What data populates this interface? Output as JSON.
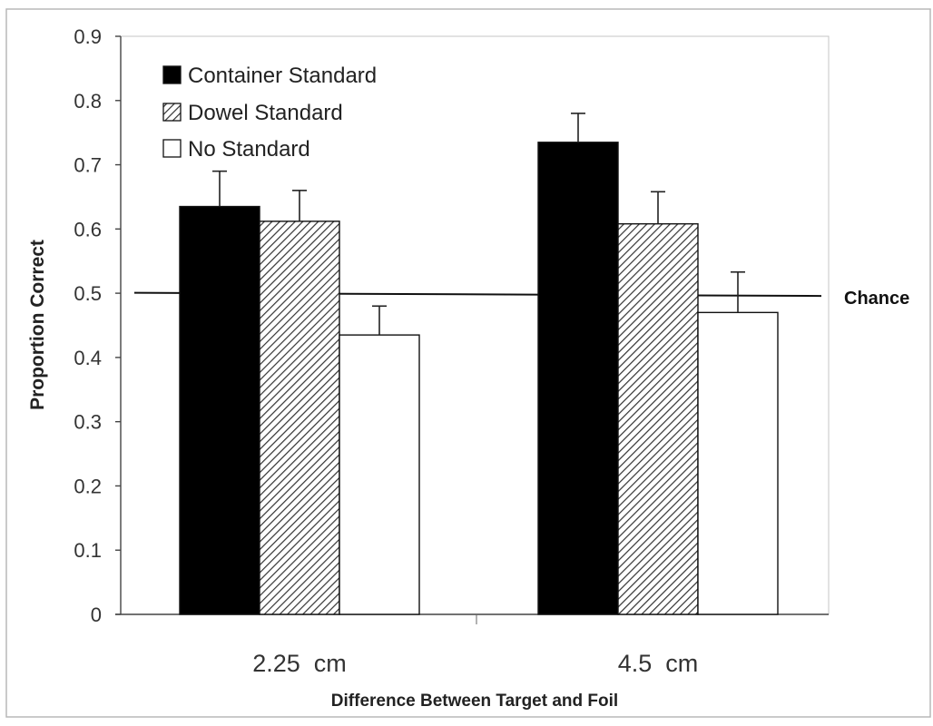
{
  "chart_data": {
    "type": "bar",
    "xlabel": "Difference Between Target and Foil",
    "ylabel": "Proportion Correct",
    "categories": [
      "2.25  cm",
      "4.5  cm"
    ],
    "ylim": [
      0,
      0.9
    ],
    "yticks": [
      "0",
      "0.1",
      "0.2",
      "0.3",
      "0.4",
      "0.5",
      "0.6",
      "0.7",
      "0.8",
      "0.9"
    ],
    "grid": false,
    "legend_position": "top-left",
    "series": [
      {
        "name": "Container Standard",
        "values": [
          0.635,
          0.735
        ],
        "errors": [
          0.055,
          0.045
        ],
        "fill": "solid",
        "color": "#000000"
      },
      {
        "name": "Dowel Standard",
        "values": [
          0.612,
          0.608
        ],
        "errors": [
          0.048,
          0.05
        ],
        "fill": "hatched",
        "color": "#555555"
      },
      {
        "name": "No Standard",
        "values": [
          0.435,
          0.47
        ],
        "errors": [
          0.045,
          0.063
        ],
        "fill": "empty",
        "color": "#ffffff"
      }
    ],
    "reference_line": {
      "label": "Chance",
      "value": 0.5
    }
  }
}
